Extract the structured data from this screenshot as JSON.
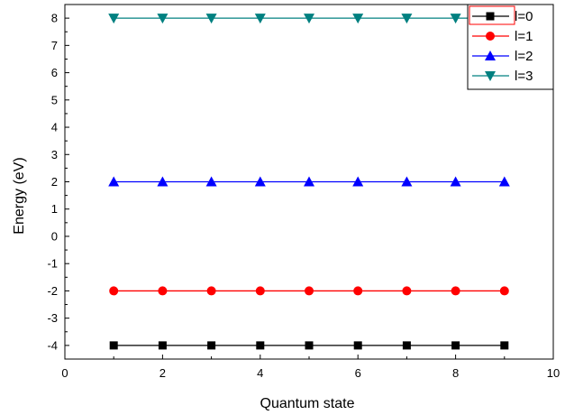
{
  "chart_data": {
    "type": "line",
    "title": "",
    "xlabel": "Quantum state",
    "ylabel": "Energy (eV)",
    "xlim": [
      0,
      10
    ],
    "ylim": [
      -4.5,
      8.5
    ],
    "x_ticks": [
      0,
      2,
      4,
      6,
      8,
      10
    ],
    "x_tick_labels": [
      "0",
      "2",
      "4",
      "6",
      "8",
      "10"
    ],
    "y_ticks": [
      -4,
      -3,
      -2,
      -1,
      0,
      1,
      2,
      3,
      4,
      5,
      6,
      7,
      8
    ],
    "y_tick_labels": [
      "-4",
      "-3",
      "-2",
      "-1",
      "0",
      "1",
      "2",
      "3",
      "4",
      "5",
      "6",
      "7",
      "8"
    ],
    "grid": false,
    "legend_position": "top-right",
    "x": [
      1,
      2,
      3,
      4,
      5,
      6,
      7,
      8,
      9
    ],
    "series": [
      {
        "name": "l=0",
        "color": "#000000",
        "marker": "square",
        "values": [
          -4,
          -4,
          -4,
          -4,
          -4,
          -4,
          -4,
          -4,
          -4
        ]
      },
      {
        "name": "l=1",
        "color": "#ff0000",
        "marker": "circle",
        "values": [
          -2,
          -2,
          -2,
          -2,
          -2,
          -2,
          -2,
          -2,
          -2
        ]
      },
      {
        "name": "l=2",
        "color": "#0000ff",
        "marker": "triangle-up",
        "values": [
          2,
          2,
          2,
          2,
          2,
          2,
          2,
          2,
          2
        ]
      },
      {
        "name": "l=3",
        "color": "#008080",
        "marker": "triangle-down",
        "values": [
          8,
          8,
          8,
          8,
          8,
          8,
          8,
          8,
          8
        ]
      }
    ]
  }
}
